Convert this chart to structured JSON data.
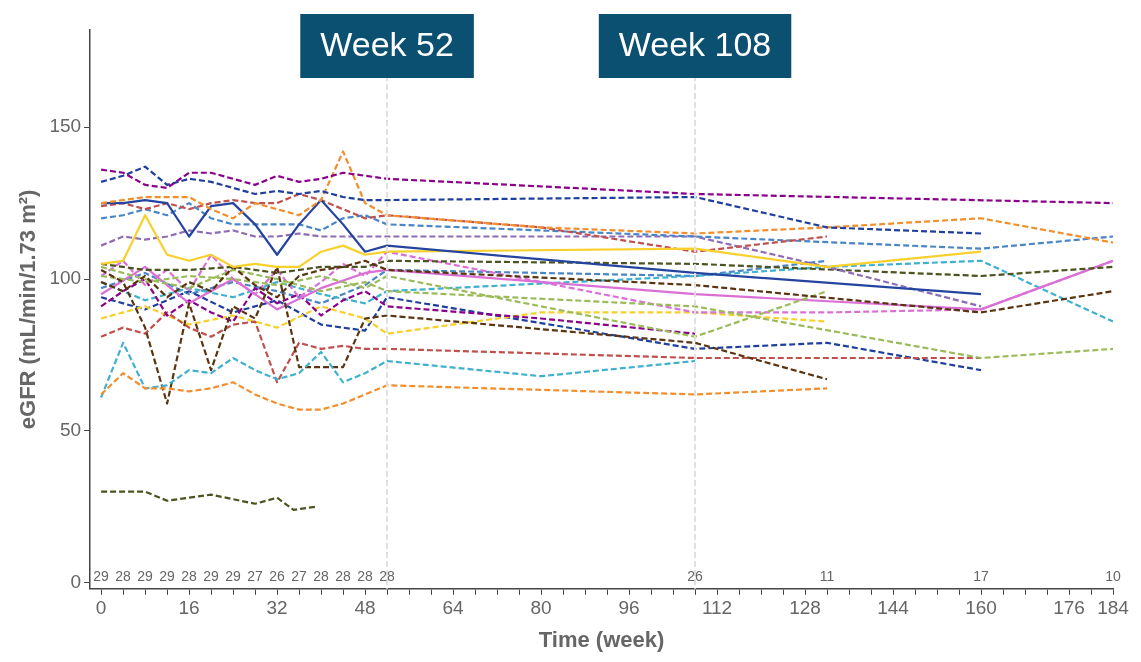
{
  "chart_data": {
    "type": "line",
    "xlabel": "Time (week)",
    "ylabel": "eGFR (mL/min/1.73 m²)",
    "xlim": [
      -2,
      184
    ],
    "ylim": [
      -2,
      182
    ],
    "xticks": [
      0,
      {
        "value": 4,
        "label": null
      },
      {
        "value": 8,
        "label": null
      },
      {
        "value": 12,
        "label": null
      },
      16,
      {
        "value": 20,
        "label": null
      },
      {
        "value": 24,
        "label": null
      },
      {
        "value": 28,
        "label": null
      },
      32,
      {
        "value": 36,
        "label": null
      },
      {
        "value": 40,
        "label": null
      },
      {
        "value": 44,
        "label": null
      },
      48,
      {
        "value": 52,
        "label": null
      },
      {
        "value": 56,
        "label": null
      },
      {
        "value": 60,
        "label": null
      },
      64,
      {
        "value": 68,
        "label": null
      },
      {
        "value": 72,
        "label": null
      },
      {
        "value": 76,
        "label": null
      },
      80,
      {
        "value": 84,
        "label": null
      },
      {
        "value": 88,
        "label": null
      },
      {
        "value": 92,
        "label": null
      },
      96,
      {
        "value": 100,
        "label": null
      },
      {
        "value": 104,
        "label": null
      },
      {
        "value": 108,
        "label": null
      },
      112,
      {
        "value": 116,
        "label": null
      },
      {
        "value": 120,
        "label": null
      },
      {
        "value": 124,
        "label": null
      },
      128,
      {
        "value": 132,
        "label": null
      },
      {
        "value": 136,
        "label": null
      },
      {
        "value": 140,
        "label": null
      },
      144,
      {
        "value": 148,
        "label": null
      },
      {
        "value": 152,
        "label": null
      },
      {
        "value": 156,
        "label": null
      },
      160,
      {
        "value": 164,
        "label": null
      },
      {
        "value": 168,
        "label": null
      },
      {
        "value": 172,
        "label": null
      },
      176,
      {
        "value": 180,
        "label": null
      },
      184
    ],
    "yticks": [
      0,
      50,
      100,
      150
    ],
    "grid": false,
    "legend": false,
    "marker": "none",
    "ref_lines": [
      {
        "axis": "x",
        "value": 52,
        "label": "Week 52",
        "color": "#e0e0e0",
        "line_style": "dashed"
      },
      {
        "axis": "x",
        "value": 108,
        "label": "Week 108",
        "color": "#e0e0e0",
        "line_style": "dashed"
      }
    ],
    "annotations": [
      "29",
      "28",
      "29",
      "29",
      "28",
      "29",
      "29",
      "27",
      "26",
      "27",
      "28",
      "28",
      "28",
      "28",
      "26",
      "11",
      "17",
      "10"
    ],
    "series": [
      {
        "color": "#8b008b",
        "line_style": "dashed",
        "x": [
          0,
          4,
          8,
          12,
          16,
          20,
          24,
          28,
          32,
          36,
          40,
          44,
          48,
          52,
          108,
          184
        ],
        "values": [
          136,
          135,
          131,
          130,
          135,
          135,
          133,
          131,
          134,
          132,
          133,
          135,
          134,
          133,
          128,
          125
        ]
      },
      {
        "color": "#1f3f9f",
        "line_style": "dashed",
        "x": [
          0,
          4,
          8,
          12,
          16,
          20,
          24,
          28,
          32,
          36,
          40,
          44,
          48,
          52,
          108,
          132,
          160
        ],
        "values": [
          132,
          134,
          137,
          131,
          133,
          132,
          130,
          128,
          129,
          128,
          129,
          127,
          126,
          126,
          127,
          117,
          115
        ]
      },
      {
        "color": "#f28e2b",
        "line_style": "dashed",
        "x": [
          0,
          4,
          8,
          12,
          16,
          20,
          24,
          28,
          32,
          36,
          40,
          44,
          48,
          52,
          80,
          108,
          132,
          160,
          184
        ],
        "values": [
          125,
          126,
          127,
          127,
          127,
          123,
          120,
          125,
          123,
          121,
          126,
          142,
          125,
          121,
          117,
          115,
          117,
          120,
          112
        ]
      },
      {
        "color": "#2444a0",
        "line_style": "solid",
        "x": [
          0,
          4,
          8,
          12,
          16,
          20,
          24,
          28,
          32,
          36,
          40,
          44,
          48,
          52,
          108,
          160
        ],
        "values": [
          125,
          125,
          126,
          125,
          114,
          124,
          125,
          118,
          108,
          118,
          126,
          118,
          109,
          111,
          102,
          95
        ]
      },
      {
        "color": "#f7d02c",
        "line_style": "solid",
        "x": [
          0,
          4,
          8,
          12,
          16,
          20,
          24,
          28,
          32,
          36,
          40,
          44,
          48,
          52,
          108,
          132,
          160
        ],
        "values": [
          105,
          106,
          121,
          108,
          106,
          108,
          104,
          105,
          104,
          104,
          109,
          111,
          108,
          109,
          110,
          104,
          109
        ]
      },
      {
        "color": "#c0504d",
        "line_style": "dashed",
        "x": [
          0,
          4,
          8,
          12,
          16,
          20,
          24,
          28,
          32,
          36,
          40,
          44,
          48,
          52,
          80,
          108,
          132
        ],
        "values": [
          124,
          125,
          123,
          125,
          123,
          125,
          126,
          125,
          125,
          128,
          126,
          123,
          120,
          121,
          117,
          109,
          114
        ]
      },
      {
        "color": "#4a86c5",
        "line_style": "dashed",
        "x": [
          0,
          4,
          8,
          12,
          16,
          20,
          24,
          28,
          32,
          36,
          40,
          44,
          48,
          52,
          108,
          160,
          184
        ],
        "values": [
          120,
          121,
          123,
          121,
          125,
          120,
          118,
          118,
          118,
          118,
          116,
          120,
          121,
          118,
          114,
          110,
          114
        ]
      },
      {
        "color": "#8e6bb5",
        "line_style": "dashed",
        "x": [
          0,
          4,
          8,
          12,
          16,
          20,
          24,
          28,
          32,
          36,
          40,
          44,
          48,
          52,
          108,
          132,
          160
        ],
        "values": [
          111,
          114,
          113,
          114,
          116,
          115,
          116,
          114,
          114,
          115,
          114,
          114,
          114,
          114,
          114,
          104,
          91
        ]
      },
      {
        "color": "#4b5320",
        "line_style": "dashed",
        "x": [
          0,
          8,
          12,
          20,
          28,
          32,
          35,
          39
        ],
        "values": [
          30,
          30,
          27,
          29,
          26,
          28,
          24,
          25
        ]
      },
      {
        "color": "#f28e2b",
        "line_style": "dashed",
        "x": [
          0,
          4,
          8,
          12,
          16,
          20,
          24,
          28,
          32,
          36,
          40,
          44,
          48,
          52,
          108,
          132
        ],
        "values": [
          62,
          69,
          64,
          64,
          63,
          64,
          66,
          62,
          59,
          57,
          57,
          59,
          62,
          65,
          62,
          64
        ]
      },
      {
        "color": "#3fb1ce",
        "line_style": "dashed",
        "x": [
          0,
          4,
          8,
          12,
          16,
          20,
          24,
          28,
          32,
          36,
          40,
          44,
          48,
          52,
          80,
          108
        ],
        "values": [
          61,
          79,
          64,
          65,
          70,
          69,
          74,
          70,
          67,
          69,
          76,
          66,
          69,
          73,
          68,
          73
        ]
      },
      {
        "color": "#5a3410",
        "line_style": "dashed",
        "x": [
          0,
          4,
          8,
          12,
          16,
          20,
          24,
          28,
          32,
          36,
          40,
          44,
          48,
          52,
          108,
          132
        ],
        "values": [
          103,
          99,
          84,
          59,
          92,
          70,
          91,
          87,
          104,
          71,
          71,
          71,
          87,
          88,
          79,
          67
        ]
      },
      {
        "color": "#5a3410",
        "line_style": "dashed",
        "x": [
          0,
          4,
          8,
          12,
          16,
          20,
          24,
          28,
          32,
          36,
          40,
          44,
          48,
          52,
          108,
          160,
          184
        ],
        "values": [
          99,
          96,
          101,
          94,
          99,
          96,
          104,
          98,
          94,
          101,
          103,
          104,
          106,
          103,
          98,
          89,
          96
        ]
      },
      {
        "color": "#4b5320",
        "line_style": "dashed",
        "x": [
          0,
          8,
          16,
          24,
          32,
          40,
          48,
          52,
          108,
          160,
          184
        ],
        "values": [
          105,
          103,
          103,
          104,
          102,
          104,
          104,
          106,
          105,
          101,
          104
        ]
      },
      {
        "color": "#9bbb59",
        "line_style": "dashed",
        "x": [
          0,
          8,
          16,
          24,
          32,
          40,
          48,
          52,
          80,
          108,
          132
        ],
        "values": [
          101,
          99,
          101,
          100,
          98,
          101,
          97,
          101,
          91,
          81,
          96
        ]
      },
      {
        "color": "#9bbb59",
        "line_style": "dashed",
        "x": [
          0,
          8,
          16,
          24,
          32,
          40,
          48,
          52,
          108,
          160,
          184
        ],
        "values": [
          104,
          100,
          97,
          103,
          100,
          96,
          99,
          96,
          91,
          74,
          77
        ]
      },
      {
        "color": "#da70d6",
        "line_style": "dashed",
        "x": [
          0,
          4,
          8,
          12,
          16,
          20,
          24,
          28,
          32,
          36,
          40,
          44,
          48,
          52,
          80,
          108,
          132,
          160,
          184
        ],
        "values": [
          101,
          106,
          98,
          103,
          96,
          108,
          100,
          95,
          103,
          94,
          99,
          105,
          101,
          109,
          99,
          89,
          89,
          90,
          106
        ]
      },
      {
        "color": "#da70d6",
        "line_style": "solid",
        "x": [
          0,
          8,
          16,
          24,
          32,
          40,
          48,
          52,
          108,
          160,
          184
        ],
        "values": [
          95,
          104,
          92,
          100,
          90,
          97,
          102,
          103,
          95,
          90,
          106
        ]
      },
      {
        "color": "#8b008b",
        "line_style": "dashed",
        "x": [
          0,
          4,
          8,
          12,
          16,
          20,
          24,
          28,
          32,
          36,
          40,
          44,
          48,
          52,
          80,
          108
        ],
        "values": [
          91,
          96,
          100,
          88,
          93,
          89,
          86,
          97,
          92,
          95,
          88,
          93,
          96,
          91,
          87,
          82
        ]
      },
      {
        "color": "#c0504d",
        "line_style": "dashed",
        "x": [
          0,
          4,
          8,
          12,
          16,
          20,
          24,
          28,
          32,
          36,
          40,
          44,
          48,
          52,
          108,
          160
        ],
        "values": [
          81,
          84,
          82,
          89,
          84,
          81,
          85,
          86,
          66,
          79,
          77,
          78,
          77,
          77,
          74,
          74
        ]
      },
      {
        "color": "#3fb1ce",
        "line_style": "dashed",
        "x": [
          0,
          8,
          16,
          24,
          32,
          40,
          48,
          52,
          108,
          132,
          160,
          184
        ],
        "values": [
          99,
          93,
          97,
          94,
          99,
          95,
          92,
          96,
          101,
          104,
          106,
          86
        ]
      },
      {
        "color": "#f7d02c",
        "line_style": "dashed",
        "x": [
          0,
          8,
          16,
          24,
          32,
          40,
          48,
          52,
          80,
          108,
          132
        ],
        "values": [
          87,
          91,
          85,
          88,
          84,
          91,
          87,
          82,
          89,
          89,
          86
        ]
      },
      {
        "color": "#1f3f9f",
        "line_style": "dashed",
        "x": [
          0,
          8,
          16,
          24,
          32,
          40,
          48,
          52,
          108,
          132,
          160
        ],
        "values": [
          94,
          90,
          96,
          89,
          93,
          85,
          83,
          94,
          77,
          79,
          70
        ]
      },
      {
        "color": "#4a86c5",
        "line_style": "dashed",
        "x": [
          0,
          8,
          16,
          24,
          32,
          40,
          48,
          52,
          108,
          132
        ],
        "values": [
          97,
          102,
          95,
          99,
          96,
          92,
          98,
          103,
          101,
          106
        ]
      }
    ]
  }
}
